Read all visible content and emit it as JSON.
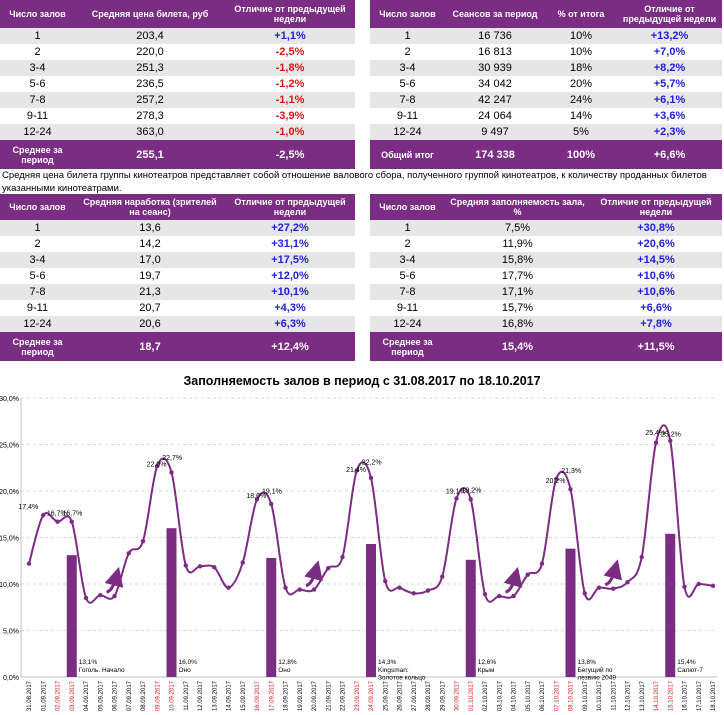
{
  "table1": {
    "headers": [
      "Число залов",
      "Средняя цена билета, руб",
      "Отличие от предыдущей недели"
    ],
    "rows": [
      {
        "halls": "1",
        "value": "203,4",
        "change": "+1,1%",
        "dir": "pos"
      },
      {
        "halls": "2",
        "value": "220,0",
        "change": "-2,5%",
        "dir": "neg"
      },
      {
        "halls": "3-4",
        "value": "251,3",
        "change": "-1,8%",
        "dir": "neg"
      },
      {
        "halls": "5-6",
        "value": "236,5",
        "change": "-1,2%",
        "dir": "neg"
      },
      {
        "halls": "7-8",
        "value": "257,2",
        "change": "-1,1%",
        "dir": "neg"
      },
      {
        "halls": "9-11",
        "value": "278,3",
        "change": "-3,9%",
        "dir": "neg"
      },
      {
        "halls": "12-24",
        "value": "363,0",
        "change": "-1,0%",
        "dir": "neg"
      }
    ],
    "footer": {
      "label": "Среднее за период",
      "value": "255,1",
      "change": "-2,5%"
    }
  },
  "table2": {
    "headers": [
      "Число залов",
      "Сеансов за период",
      "% от итога",
      "Отличие от предыдущей недели"
    ],
    "rows": [
      {
        "halls": "1",
        "sessions": "16 736",
        "share": "10%",
        "change": "+13,2%"
      },
      {
        "halls": "2",
        "sessions": "16 813",
        "share": "10%",
        "change": "+7,0%"
      },
      {
        "halls": "3-4",
        "sessions": "30 939",
        "share": "18%",
        "change": "+8,2%"
      },
      {
        "halls": "5-6",
        "sessions": "34 042",
        "share": "20%",
        "change": "+5,7%"
      },
      {
        "halls": "7-8",
        "sessions": "42 247",
        "share": "24%",
        "change": "+6,1%"
      },
      {
        "halls": "9-11",
        "sessions": "24 064",
        "share": "14%",
        "change": "+3,6%"
      },
      {
        "halls": "12-24",
        "sessions": "9 497",
        "share": "5%",
        "change": "+2,3%"
      }
    ],
    "footer": {
      "label": "Общий итог",
      "sessions": "174 338",
      "share": "100%",
      "change": "+6,6%"
    }
  },
  "note": "Средняя цена билета группы кинотеатров представляет собой отношение валового сбора, полученного группой кинотеатров, к количеству проданных билетов указанными кинотеатрами.",
  "table3": {
    "headers": [
      "Число залов",
      "Средняя наработка (зрителей на сеанс)",
      "Отличие от предыдущей недели"
    ],
    "rows": [
      {
        "halls": "1",
        "value": "13,6",
        "change": "+27,2%"
      },
      {
        "halls": "2",
        "value": "14,2",
        "change": "+31,1%"
      },
      {
        "halls": "3-4",
        "value": "17,0",
        "change": "+17,5%"
      },
      {
        "halls": "5-6",
        "value": "19,7",
        "change": "+12,0%"
      },
      {
        "halls": "7-8",
        "value": "21,3",
        "change": "+10,1%"
      },
      {
        "halls": "9-11",
        "value": "20,7",
        "change": "+4,3%"
      },
      {
        "halls": "12-24",
        "value": "20,6",
        "change": "+6,3%"
      }
    ],
    "footer": {
      "label": "Среднее за период",
      "value": "18,7",
      "change": "+12,4%"
    }
  },
  "table4": {
    "headers": [
      "Число залов",
      "Средняя заполняемость зала, %",
      "Отличие от предыдущей недели"
    ],
    "rows": [
      {
        "halls": "1",
        "value": "7,5%",
        "change": "+30,8%"
      },
      {
        "halls": "2",
        "value": "11,9%",
        "change": "+20,6%"
      },
      {
        "halls": "3-4",
        "value": "15,8%",
        "change": "+14,5%"
      },
      {
        "halls": "5-6",
        "value": "17,7%",
        "change": "+10,6%"
      },
      {
        "halls": "7-8",
        "value": "17,1%",
        "change": "+10,6%"
      },
      {
        "halls": "9-11",
        "value": "15,7%",
        "change": "+6,6%"
      },
      {
        "halls": "12-24",
        "value": "16,8%",
        "change": "+7,8%"
      }
    ],
    "footer": {
      "label": "Среднее за период",
      "value": "15,4%",
      "change": "+11,5%"
    }
  },
  "colors": {
    "purple": "#7B2C83",
    "blue": "#1F1FD6",
    "red": "#E01515",
    "band": "#E6E6E6"
  },
  "chart_data": {
    "type": "line",
    "title": "Заполняемость залов в период с 31.08.2017 по 18.10.2017",
    "xlabel": "",
    "ylabel": "",
    "ylim": [
      0,
      30
    ],
    "yticks": [
      "0,0%",
      "5,0%",
      "10,0%",
      "15,0%",
      "20,0%",
      "25,0%",
      "30,0%"
    ],
    "dates": [
      "31.08.2017",
      "01.09.2017",
      "02.09.2017",
      "03.09.2017",
      "04.09.2017",
      "05.09.2017",
      "06.09.2017",
      "07.09.2017",
      "08.09.2017",
      "09.09.2017",
      "10.09.2017",
      "11.09.2017",
      "12.09.2017",
      "13.09.2017",
      "14.09.2017",
      "15.09.2017",
      "16.09.2017",
      "17.09.2017",
      "18.09.2017",
      "19.09.2017",
      "20.09.2017",
      "21.09.2017",
      "22.09.2017",
      "23.09.2017",
      "24.09.2017",
      "25.09.2017",
      "26.09.2017",
      "27.09.2017",
      "28.09.2017",
      "29.09.2017",
      "30.09.2017",
      "01.10.2017",
      "02.10.2017",
      "03.10.2017",
      "04.10.2017",
      "05.10.2017",
      "06.10.2017",
      "07.10.2017",
      "08.10.2017",
      "09.10.2017",
      "10.10.2017",
      "11.10.2017",
      "12.10.2017",
      "13.10.2017",
      "14.10.2017",
      "15.10.2017",
      "16.10.2017",
      "17.10.2017",
      "18.10.2017"
    ],
    "red_date_indices": [
      2,
      3,
      9,
      10,
      16,
      17,
      23,
      24,
      30,
      31,
      37,
      38,
      44,
      45
    ],
    "line_values": [
      12.2,
      17.4,
      16.7,
      16.7,
      8.5,
      8.8,
      8.7,
      13.3,
      14.6,
      22.7,
      22.0,
      12.0,
      11.9,
      11.8,
      9.6,
      12.3,
      19.1,
      18.6,
      9.6,
      9.4,
      9.4,
      11.7,
      12.9,
      22.2,
      21.4,
      10.3,
      9.6,
      9.0,
      9.3,
      10.8,
      19.2,
      19.1,
      8.9,
      8.7,
      8.7,
      11.0,
      12.2,
      21.3,
      20.2,
      9.0,
      9.6,
      9.5,
      10.2,
      12.9,
      25.2,
      25.4,
      9.7,
      10.0,
      9.8
    ],
    "line_labels": [
      {
        "index": 1,
        "text": "17,4%"
      },
      {
        "index": 2,
        "text": "16,7%"
      },
      {
        "index": 3,
        "text": "16,7%"
      },
      {
        "index": 9,
        "text": "22,7%"
      },
      {
        "index": 10,
        "text": "22,0%"
      },
      {
        "index": 16,
        "text": "19,1%"
      },
      {
        "index": 17,
        "text": "18,6%"
      },
      {
        "index": 23,
        "text": "22,2%"
      },
      {
        "index": 24,
        "text": "21,4%"
      },
      {
        "index": 30,
        "text": "19,2%"
      },
      {
        "index": 31,
        "text": "19,1%"
      },
      {
        "index": 37,
        "text": "21,3%"
      },
      {
        "index": 38,
        "text": "20,2%"
      },
      {
        "index": 44,
        "text": "25,2%"
      },
      {
        "index": 45,
        "text": "25,4%"
      }
    ],
    "bars": [
      {
        "index": 3,
        "value": 13.1,
        "label": "13,1%",
        "film": "Гоголь. Начало"
      },
      {
        "index": 10,
        "value": 16.0,
        "label": "16,0%",
        "film": "Оно"
      },
      {
        "index": 17,
        "value": 12.8,
        "label": "12,8%",
        "film": "Оно"
      },
      {
        "index": 24,
        "value": 14.3,
        "label": "14,3%",
        "film": "Kingsman: Золотое кольцо"
      },
      {
        "index": 31,
        "value": 12.6,
        "label": "12,6%",
        "film": "Крым"
      },
      {
        "index": 38,
        "value": 13.8,
        "label": "13,8%",
        "film": "Бегущий по лезвию 2049"
      },
      {
        "index": 45,
        "value": 15.4,
        "label": "15,4%",
        "film": "Салют-7"
      }
    ]
  }
}
